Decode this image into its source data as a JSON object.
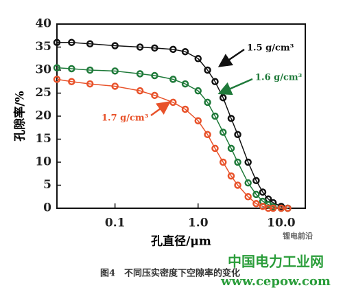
{
  "chart_data": {
    "type": "line",
    "y_label": "孔隙率/%",
    "x_label": "孔直径/μm",
    "caption": "图4　不同压实密度下空隙率的变化",
    "watermarks": [
      "锂电前沿",
      "中国电力工业网",
      "www.cepow.com"
    ],
    "log_x": true,
    "xlim": [
      0.02,
      19.5
    ],
    "xticks": [
      0.1,
      {
        "value": 1,
        "label": "1.0"
      },
      {
        "value": 10,
        "label": "10.0"
      }
    ],
    "ylim": [
      0,
      40
    ],
    "yticks": [
      0,
      5,
      10,
      15,
      20,
      25,
      30,
      35,
      40
    ],
    "x": [
      0.02,
      0.03,
      0.05,
      0.1,
      0.2,
      0.3,
      0.5,
      0.7,
      1,
      1.3,
      1.6,
      2,
      2.5,
      3,
      4,
      5,
      6,
      7,
      8,
      10,
      12
    ],
    "series": [
      {
        "name": "1.5 g/cm³",
        "color": "#111111",
        "values": [
          36,
          36,
          35.7,
          35.3,
          35,
          34.8,
          34.5,
          34,
          32.5,
          30,
          27.5,
          24,
          19.5,
          16,
          10,
          6,
          3.5,
          2,
          1.2,
          0.4,
          0
        ]
      },
      {
        "name": "1.6 g/cm³",
        "color": "#1f7a3a",
        "values": [
          30.5,
          30.3,
          30,
          29.8,
          29.2,
          28.8,
          28,
          27,
          25.5,
          23,
          20,
          16.5,
          13,
          10,
          5.5,
          3,
          1.5,
          0.8,
          0.3,
          0,
          0
        ]
      },
      {
        "name": "1.7 g/cm³",
        "color": "#e8522a",
        "values": [
          28,
          27.5,
          27,
          26.5,
          25.5,
          24.5,
          23,
          21.5,
          19,
          16,
          13,
          10,
          7,
          5,
          2.5,
          1,
          0.4,
          0,
          0,
          0,
          0
        ]
      }
    ]
  }
}
